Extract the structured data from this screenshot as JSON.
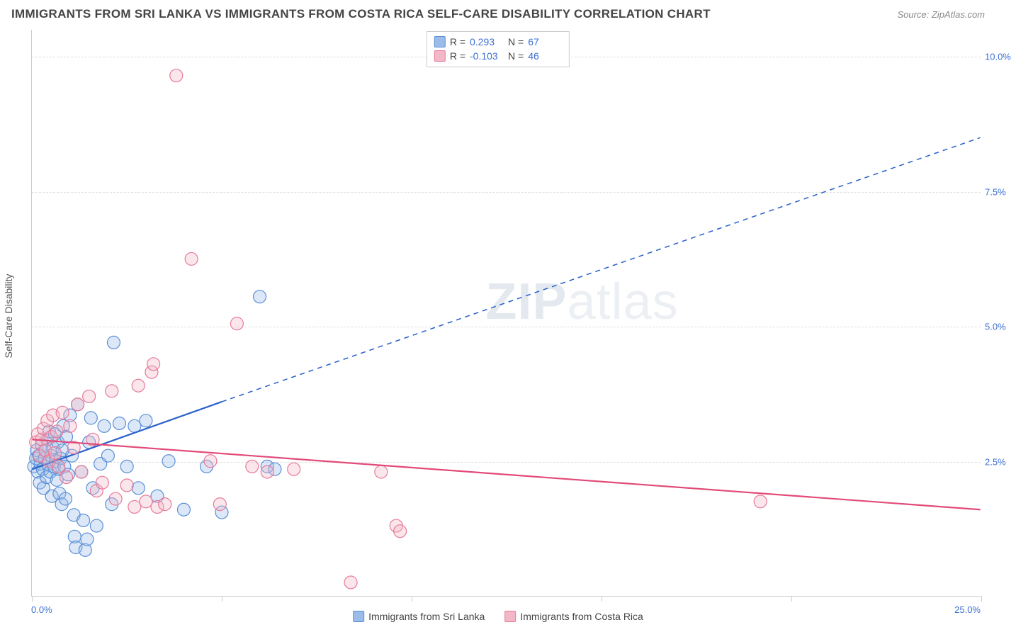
{
  "header": {
    "title": "IMMIGRANTS FROM SRI LANKA VS IMMIGRANTS FROM COSTA RICA SELF-CARE DISABILITY CORRELATION CHART",
    "source": "Source: ZipAtlas.com"
  },
  "ylabel": "Self-Care Disability",
  "watermark": {
    "part1": "ZIP",
    "part2": "atlas"
  },
  "chart": {
    "type": "scatter",
    "background_color": "#ffffff",
    "grid_color": "#dddddd",
    "axis_color": "#cccccc",
    "label_color": "#3b6fd4",
    "xlim": [
      0,
      25
    ],
    "ylim": [
      0,
      10.5
    ],
    "xticks": [
      0,
      5,
      10,
      15,
      20,
      25
    ],
    "yticks": [
      2.5,
      5.0,
      7.5,
      10.0
    ],
    "xtick_labels": {
      "0": "0.0%",
      "25": "25.0%"
    },
    "ytick_labels": [
      "2.5%",
      "5.0%",
      "7.5%",
      "10.0%"
    ],
    "marker_radius": 9,
    "series": [
      {
        "id": "sri_lanka",
        "label": "Immigrants from Sri Lanka",
        "color_fill": "#9bbce8",
        "color_stroke": "#5a8fd6",
        "R": "0.293",
        "N": "67",
        "trend": {
          "solid": {
            "x1": 0.0,
            "y1": 2.35,
            "x2": 5.0,
            "y2": 3.6
          },
          "dashed": {
            "x1": 5.0,
            "y1": 3.6,
            "x2": 25.0,
            "y2": 8.5
          },
          "color": "#2b62c9",
          "width": 2.2
        },
        "points": [
          [
            0.05,
            2.4
          ],
          [
            0.1,
            2.55
          ],
          [
            0.12,
            2.7
          ],
          [
            0.15,
            2.3
          ],
          [
            0.18,
            2.6
          ],
          [
            0.2,
            2.1
          ],
          [
            0.22,
            2.45
          ],
          [
            0.25,
            2.8
          ],
          [
            0.28,
            2.35
          ],
          [
            0.3,
            2.0
          ],
          [
            0.33,
            2.55
          ],
          [
            0.35,
            2.7
          ],
          [
            0.38,
            2.2
          ],
          [
            0.4,
            2.9
          ],
          [
            0.42,
            2.45
          ],
          [
            0.45,
            3.05
          ],
          [
            0.48,
            2.3
          ],
          [
            0.5,
            2.6
          ],
          [
            0.52,
            1.85
          ],
          [
            0.55,
            2.75
          ],
          [
            0.58,
            2.4
          ],
          [
            0.6,
            3.0
          ],
          [
            0.62,
            2.5
          ],
          [
            0.65,
            2.15
          ],
          [
            0.68,
            2.85
          ],
          [
            0.7,
            2.35
          ],
          [
            0.72,
            1.9
          ],
          [
            0.75,
            2.55
          ],
          [
            0.78,
            1.7
          ],
          [
            0.8,
            2.7
          ],
          [
            0.82,
            3.15
          ],
          [
            0.85,
            2.4
          ],
          [
            0.88,
            1.8
          ],
          [
            0.9,
            2.95
          ],
          [
            0.95,
            2.25
          ],
          [
            1.0,
            3.35
          ],
          [
            1.05,
            2.6
          ],
          [
            1.1,
            1.5
          ],
          [
            1.12,
            1.1
          ],
          [
            1.15,
            0.9
          ],
          [
            1.2,
            3.55
          ],
          [
            1.3,
            2.3
          ],
          [
            1.35,
            1.4
          ],
          [
            1.4,
            0.85
          ],
          [
            1.45,
            1.05
          ],
          [
            1.5,
            2.85
          ],
          [
            1.55,
            3.3
          ],
          [
            1.6,
            2.0
          ],
          [
            1.7,
            1.3
          ],
          [
            1.8,
            2.45
          ],
          [
            1.9,
            3.15
          ],
          [
            2.0,
            2.6
          ],
          [
            2.1,
            1.7
          ],
          [
            2.15,
            4.7
          ],
          [
            2.3,
            3.2
          ],
          [
            2.5,
            2.4
          ],
          [
            2.7,
            3.15
          ],
          [
            2.8,
            2.0
          ],
          [
            3.0,
            3.25
          ],
          [
            3.3,
            1.85
          ],
          [
            3.6,
            2.5
          ],
          [
            4.0,
            1.6
          ],
          [
            4.6,
            2.4
          ],
          [
            5.0,
            1.55
          ],
          [
            6.0,
            5.55
          ],
          [
            6.2,
            2.4
          ],
          [
            6.4,
            2.35
          ]
        ]
      },
      {
        "id": "costa_rica",
        "label": "Immigrants from Costa Rica",
        "color_fill": "#f3b8c7",
        "color_stroke": "#e77a9a",
        "R": "-0.103",
        "N": "46",
        "trend": {
          "solid": {
            "x1": 0.0,
            "y1": 2.9,
            "x2": 25.0,
            "y2": 1.6
          },
          "dashed": null,
          "color": "#e24a78",
          "width": 2.2
        },
        "points": [
          [
            0.1,
            2.85
          ],
          [
            0.15,
            3.0
          ],
          [
            0.2,
            2.6
          ],
          [
            0.25,
            2.9
          ],
          [
            0.3,
            3.1
          ],
          [
            0.35,
            2.7
          ],
          [
            0.4,
            3.25
          ],
          [
            0.45,
            2.5
          ],
          [
            0.5,
            2.95
          ],
          [
            0.55,
            3.35
          ],
          [
            0.6,
            2.65
          ],
          [
            0.65,
            3.05
          ],
          [
            0.7,
            2.4
          ],
          [
            0.8,
            3.4
          ],
          [
            0.9,
            2.2
          ],
          [
            1.0,
            3.15
          ],
          [
            1.1,
            2.75
          ],
          [
            1.2,
            3.55
          ],
          [
            1.3,
            2.3
          ],
          [
            1.5,
            3.7
          ],
          [
            1.6,
            2.9
          ],
          [
            1.7,
            1.95
          ],
          [
            1.85,
            2.1
          ],
          [
            2.1,
            3.8
          ],
          [
            2.2,
            1.8
          ],
          [
            2.5,
            2.05
          ],
          [
            2.7,
            1.65
          ],
          [
            2.8,
            3.9
          ],
          [
            3.0,
            1.75
          ],
          [
            3.15,
            4.15
          ],
          [
            3.2,
            4.3
          ],
          [
            3.3,
            1.65
          ],
          [
            3.5,
            1.7
          ],
          [
            3.8,
            9.65
          ],
          [
            4.2,
            6.25
          ],
          [
            4.7,
            2.5
          ],
          [
            4.95,
            1.7
          ],
          [
            5.4,
            5.05
          ],
          [
            5.8,
            2.4
          ],
          [
            6.2,
            2.3
          ],
          [
            6.9,
            2.35
          ],
          [
            8.4,
            0.25
          ],
          [
            9.2,
            2.3
          ],
          [
            9.6,
            1.3
          ],
          [
            9.7,
            1.2
          ],
          [
            19.2,
            1.75
          ]
        ]
      }
    ]
  },
  "stats_box": {
    "rows": [
      {
        "swatch_fill": "#9bbce8",
        "swatch_stroke": "#5a8fd6",
        "r_label": "R =",
        "r_val": "0.293",
        "n_label": "N =",
        "n_val": "67"
      },
      {
        "swatch_fill": "#f3b8c7",
        "swatch_stroke": "#e77a9a",
        "r_label": "R =",
        "r_val": "-0.103",
        "n_label": "N =",
        "n_val": "46"
      }
    ]
  }
}
